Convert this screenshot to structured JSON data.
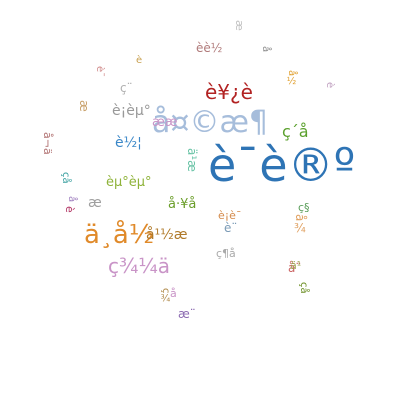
{
  "word_cloud": {
    "words": [
      {
        "text": "è¯è®º",
        "color": "#2e74b5"
      },
      {
        "text": "å¤©æ¶",
        "color": "#a6bddb"
      },
      {
        "text": "ä¸å½",
        "color": "#e08a2a"
      },
      {
        "text": "è¥¿è",
        "color": "#b22222"
      },
      {
        "text": "ç¾¼ä",
        "color": "#c994c7"
      },
      {
        "text": "è¡èµ°",
        "color": "#999999"
      },
      {
        "text": "èµ°èµ°",
        "color": "#8fb33a"
      },
      {
        "text": "è½¦",
        "color": "#3a87c8"
      },
      {
        "text": "ç´å",
        "color": "#5aa02c"
      },
      {
        "text": "å¹½æ",
        "color": "#b07a2a"
      },
      {
        "text": "èè½",
        "color": "#b07a7a"
      },
      {
        "text": "å·¥å",
        "color": "#6b9e2a"
      },
      {
        "text": "ææ",
        "color": "#c994c7"
      },
      {
        "text": "è¡è¯",
        "color": "#d48a4a"
      },
      {
        "text": "ç¨",
        "color": "#b0b0b0"
      },
      {
        "text": "å¨",
        "color": "#cc6666"
      },
      {
        "text": "æ¨",
        "color": "#8c6bb1"
      },
      {
        "text": "æ",
        "color": "#a0a0a0"
      },
      {
        "text": "ç¶å",
        "color": "#aaaaaa"
      },
      {
        "text": "ä¹æ",
        "color": "#66c2a4"
      },
      {
        "text": "æ",
        "color": "#c8a06a"
      },
      {
        "text": "å¬ä",
        "color": "#b07070"
      },
      {
        "text": "å¾",
        "color": "#e0a060"
      },
      {
        "text": "çå",
        "color": "#3aa0a0"
      },
      {
        "text": "è",
        "color": "#b03060"
      },
      {
        "text": "æ",
        "color": "#c0c0c0"
      },
      {
        "text": "ä¹",
        "color": "#9aa04a"
      },
      {
        "text": "çå",
        "color": "#6b8e23"
      },
      {
        "text": "å",
        "color": "#c994c7"
      },
      {
        "text": "ç¾",
        "color": "#b08a4a"
      },
      {
        "text": "è¨",
        "color": "#7a9ab5"
      },
      {
        "text": "å½",
        "color": "#e0a030"
      },
      {
        "text": "å",
        "color": "#8c8c8c"
      },
      {
        "text": "è",
        "color": "#c8a050"
      },
      {
        "text": "ç§",
        "color": "#5a9e5a"
      },
      {
        "text": "è¯",
        "color": "#d08a8a"
      },
      {
        "text": "å",
        "color": "#a080c0"
      },
      {
        "text": "è",
        "color": "#c0a0c0"
      }
    ]
  }
}
